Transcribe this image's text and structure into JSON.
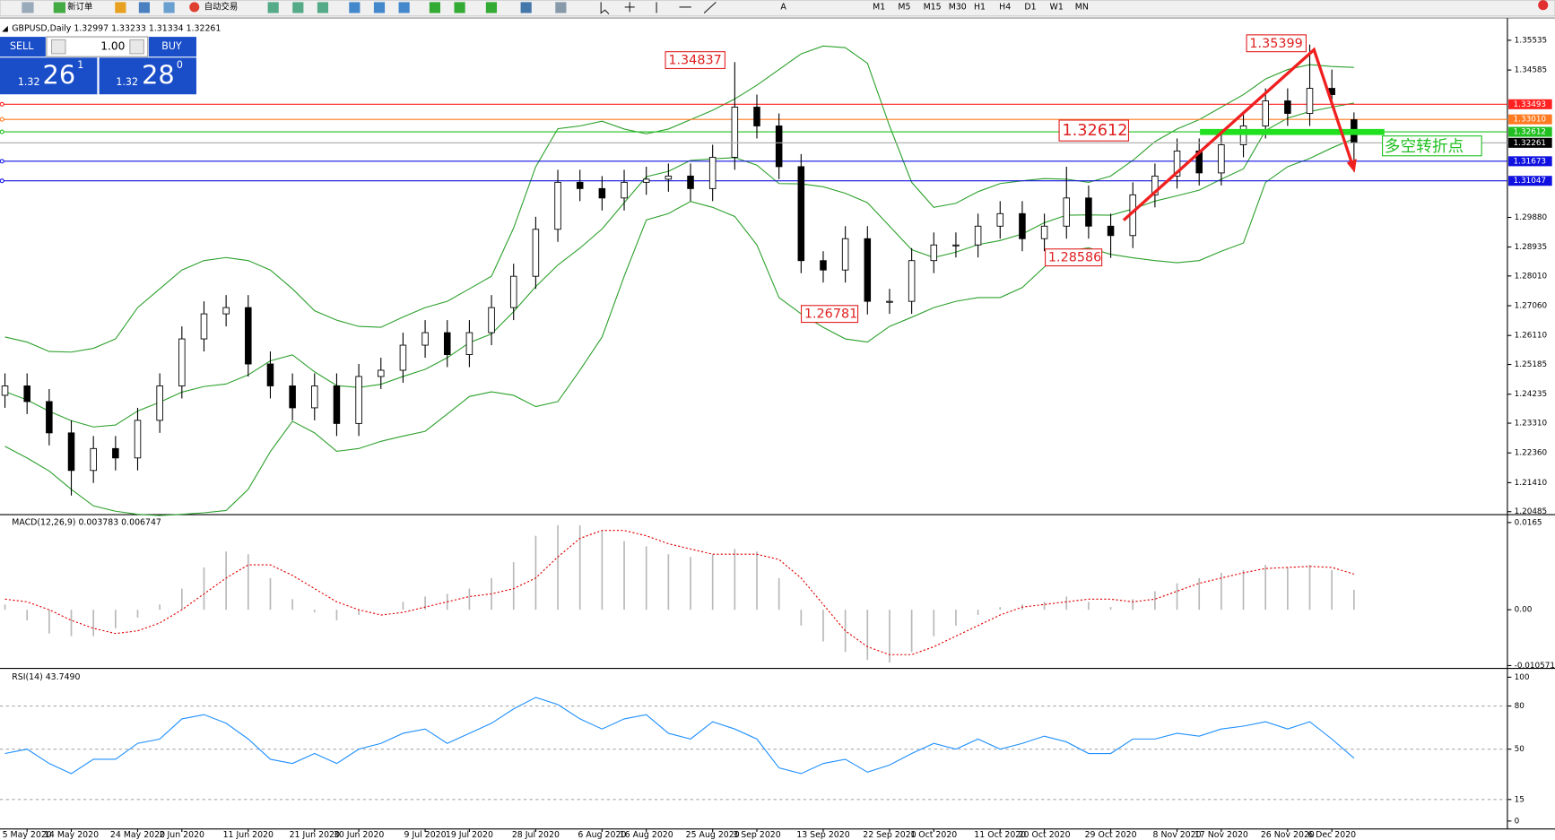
{
  "toolbar": {
    "new_order": "新订单",
    "auto_trading": "自动交易",
    "timeframes": [
      "M1",
      "M5",
      "M15",
      "M30",
      "H1",
      "H4",
      "D1",
      "W1",
      "MN"
    ]
  },
  "trade_panel": {
    "sell": "SELL",
    "lots": "1.00",
    "buy": "BUY",
    "bid_big": "1.32",
    "bid": "26",
    "bid_pip": "1",
    "ask_big": "1.32",
    "ask": "28",
    "ask_pip": "0"
  },
  "annotation": "多空转折点",
  "chart_data": [
    {
      "type": "candlestick",
      "title": "GBPUSD,Daily  1.32997 1.33233 1.31334 1.32261",
      "categories": [
        null,
        "5 May 2020",
        null,
        "14 May 2020",
        null,
        null,
        "24 May 2020",
        null,
        "2 Jun 2020",
        null,
        null,
        "11 Jun 2020",
        null,
        null,
        "21 Jun 2020",
        null,
        "30 Jun 2020",
        null,
        null,
        "9 Jul 2020",
        null,
        "19 Jul 2020",
        null,
        null,
        "28 Jul 2020",
        null,
        null,
        "6 Aug 2020",
        null,
        "16 Aug 2020",
        null,
        null,
        "25 Aug 2020",
        null,
        "3 Sep 2020",
        null,
        null,
        "13 Sep 2020",
        null,
        null,
        "22 Sep 2020",
        null,
        "1 Oct 2020",
        null,
        null,
        "11 Oct 2020",
        null,
        "20 Oct 2020",
        null,
        null,
        "29 Oct 2020",
        null,
        null,
        "8 Nov 2020",
        null,
        "17 Nov 2020",
        null,
        null,
        "26 Nov 2020",
        null,
        "6 Dec 2020",
        null
      ],
      "open": [
        1.242,
        1.245,
        1.24,
        1.23,
        1.218,
        1.225,
        1.222,
        1.234,
        1.245,
        1.26,
        1.268,
        1.27,
        1.252,
        1.245,
        1.238,
        1.245,
        1.233,
        1.248,
        1.25,
        1.258,
        1.262,
        1.255,
        1.262,
        1.27,
        1.28,
        1.295,
        1.31,
        1.308,
        1.305,
        1.31,
        1.311,
        1.312,
        1.308,
        1.318,
        1.334,
        1.328,
        1.315,
        1.285,
        1.282,
        1.292,
        1.272,
        1.272,
        1.285,
        1.29,
        1.29,
        1.296,
        1.3,
        1.292,
        1.296,
        1.305,
        1.296,
        1.293,
        1.306,
        1.312,
        1.32,
        1.313,
        1.322,
        1.328,
        1.336,
        1.332,
        1.34,
        1.32997
      ],
      "high": [
        1.249,
        1.249,
        1.244,
        1.234,
        1.229,
        1.229,
        1.238,
        1.249,
        1.264,
        1.272,
        1.274,
        1.274,
        1.256,
        1.249,
        1.249,
        1.249,
        1.252,
        1.254,
        1.262,
        1.266,
        1.266,
        1.266,
        1.274,
        1.284,
        1.299,
        1.314,
        1.314,
        1.312,
        1.314,
        1.315,
        1.316,
        1.316,
        1.322,
        1.34837,
        1.338,
        1.332,
        1.319,
        1.288,
        1.296,
        1.296,
        1.276,
        1.289,
        1.294,
        1.294,
        1.3,
        1.304,
        1.304,
        1.3,
        1.315,
        1.309,
        1.3,
        1.31,
        1.316,
        1.324,
        1.324,
        1.326,
        1.332,
        1.34,
        1.34,
        1.35399,
        1.346,
        1.33233
      ],
      "low": [
        1.238,
        1.236,
        1.226,
        1.21,
        1.214,
        1.218,
        1.218,
        1.23,
        1.241,
        1.256,
        1.264,
        1.248,
        1.241,
        1.234,
        1.234,
        1.229,
        1.229,
        1.244,
        1.246,
        1.254,
        1.251,
        1.251,
        1.258,
        1.266,
        1.276,
        1.291,
        1.304,
        1.301,
        1.301,
        1.306,
        1.307,
        1.304,
        1.304,
        1.314,
        1.324,
        1.311,
        1.281,
        1.278,
        1.278,
        1.26781,
        1.268,
        1.268,
        1.281,
        1.286,
        1.286,
        1.292,
        1.288,
        1.288,
        1.292,
        1.292,
        1.28586,
        1.289,
        1.302,
        1.308,
        1.309,
        1.309,
        1.318,
        1.324,
        1.328,
        1.328,
        1.334,
        1.31334
      ],
      "close": [
        1.245,
        1.24,
        1.23,
        1.218,
        1.225,
        1.222,
        1.234,
        1.245,
        1.26,
        1.268,
        1.27,
        1.252,
        1.245,
        1.238,
        1.245,
        1.233,
        1.248,
        1.25,
        1.258,
        1.262,
        1.255,
        1.262,
        1.27,
        1.28,
        1.295,
        1.31,
        1.308,
        1.305,
        1.31,
        1.311,
        1.312,
        1.308,
        1.318,
        1.334,
        1.328,
        1.315,
        1.285,
        1.282,
        1.292,
        1.272,
        1.272,
        1.285,
        1.29,
        1.29,
        1.296,
        1.3,
        1.292,
        1.296,
        1.305,
        1.296,
        1.293,
        1.306,
        1.312,
        1.32,
        1.313,
        1.322,
        1.328,
        1.336,
        1.332,
        1.34,
        1.338,
        1.32261
      ],
      "bands": {
        "color": "#2ca02c",
        "upper": [
          1.2606,
          1.259,
          1.256,
          1.2558,
          1.257,
          1.26,
          1.27,
          1.276,
          1.282,
          1.285,
          1.286,
          1.285,
          1.282,
          1.276,
          1.269,
          1.266,
          1.264,
          1.2637,
          1.267,
          1.27,
          1.272,
          1.276,
          1.28,
          1.2954,
          1.315,
          1.3271,
          1.328,
          1.3295,
          1.327,
          1.3255,
          1.327,
          1.33,
          1.333,
          1.3366,
          1.341,
          1.346,
          1.351,
          1.3535,
          1.353,
          1.348,
          1.328,
          1.31,
          1.302,
          1.3033,
          1.307,
          1.3096,
          1.3105,
          1.3112,
          1.311,
          1.31,
          1.312,
          1.317,
          1.323,
          1.327,
          1.33,
          1.334,
          1.338,
          1.343,
          1.346,
          1.3476,
          1.347,
          1.3467
        ],
        "middle": [
          1.2432,
          1.2405,
          1.2369,
          1.2339,
          1.2319,
          1.2325,
          1.237,
          1.2398,
          1.243,
          1.2448,
          1.2456,
          1.2485,
          1.253,
          1.2549,
          1.2495,
          1.2451,
          1.2445,
          1.2455,
          1.248,
          1.2503,
          1.254,
          1.2588,
          1.2616,
          1.2687,
          1.2767,
          1.2836,
          1.289,
          1.2951,
          1.3035,
          1.3118,
          1.3135,
          1.317,
          1.3175,
          1.3179,
          1.3155,
          1.3096,
          1.3095,
          1.3086,
          1.3065,
          1.3035,
          1.296,
          1.2885,
          1.286,
          1.2877,
          1.2901,
          1.2914,
          1.2935,
          1.2971,
          1.2995,
          1.2996,
          1.2995,
          1.3015,
          1.304,
          1.3057,
          1.3075,
          1.311,
          1.3143,
          1.3265,
          1.3305,
          1.3326,
          1.334,
          1.3353
        ],
        "lower": [
          1.2257,
          1.222,
          1.2178,
          1.212,
          1.2067,
          1.205,
          1.204,
          1.2036,
          1.204,
          1.2045,
          1.2052,
          1.212,
          1.224,
          1.2337,
          1.23,
          1.2241,
          1.225,
          1.2273,
          1.229,
          1.2305,
          1.236,
          1.2416,
          1.2431,
          1.242,
          1.2384,
          1.24,
          1.25,
          1.2606,
          1.28,
          1.298,
          1.3,
          1.3039,
          1.302,
          1.2991,
          1.29,
          1.2732,
          1.268,
          1.2637,
          1.26,
          1.259,
          1.264,
          1.2669,
          1.27,
          1.272,
          1.2732,
          1.2732,
          1.2764,
          1.283,
          1.288,
          1.2891,
          1.287,
          1.2859,
          1.285,
          1.2843,
          1.285,
          1.288,
          1.2906,
          1.31,
          1.315,
          1.3176,
          1.321,
          1.3239
        ]
      },
      "levels": [
        {
          "value": 1.33493,
          "color": "#ff2020"
        },
        {
          "value": 1.3301,
          "label": "1.33010",
          "color": "#ff7a20"
        },
        {
          "value": 1.32612,
          "color": "#20c020"
        },
        {
          "value": 1.31673,
          "color": "#1010e0"
        },
        {
          "value": 1.31047,
          "color": "#1010e0"
        }
      ],
      "ylim": [
        1.2042,
        1.3612
      ],
      "yticks": [
        1.35535,
        1.34585,
        {
          "value": 1.2988,
          "label": "1.29880"
        },
        1.28935,
        {
          "value": 1.2801,
          "label": "1.28010"
        },
        {
          "value": 1.2706,
          "label": "1.27060"
        },
        {
          "value": 1.2611,
          "label": "1.26110"
        },
        1.25185,
        1.24235,
        {
          "value": 1.2331,
          "label": "1.23310"
        },
        {
          "value": 1.2236,
          "label": "1.22360"
        },
        {
          "value": 1.2141,
          "label": "1.21410"
        },
        1.20485
      ]
    },
    {
      "type": "macd",
      "title": "MACD(12,26,9) 0.003783 0.006747",
      "values": [
        0.001,
        -0.002,
        -0.0045,
        -0.005,
        -0.005,
        -0.0035,
        -0.0015,
        0.001,
        0.004,
        0.008,
        0.011,
        0.0105,
        0.006,
        0.002,
        -0.0005,
        -0.002,
        -0.001,
        0.0,
        0.0015,
        0.0025,
        0.003,
        0.004,
        0.006,
        0.009,
        0.014,
        0.016,
        0.016,
        0.015,
        0.013,
        0.012,
        0.0105,
        0.01,
        0.0105,
        0.0115,
        0.011,
        0.006,
        -0.003,
        -0.006,
        -0.008,
        -0.0095,
        -0.01,
        -0.008,
        -0.005,
        -0.003,
        -0.001,
        0.0005,
        0.001,
        0.0015,
        0.0025,
        0.0015,
        0.0005,
        0.002,
        0.0035,
        0.005,
        0.006,
        0.007,
        0.0075,
        0.0085,
        0.008,
        0.0085,
        0.0075,
        0.003783
      ],
      "color": "#b8b8b8",
      "signal": [
        0.002,
        0.0015,
        0.0,
        -0.002,
        -0.0035,
        -0.0045,
        -0.004,
        -0.0025,
        0.0,
        0.003,
        0.006,
        0.0085,
        0.0085,
        0.0065,
        0.004,
        0.0015,
        0.0,
        -0.001,
        -0.0005,
        0.0005,
        0.0015,
        0.0025,
        0.003,
        0.004,
        0.006,
        0.01,
        0.0135,
        0.015,
        0.015,
        0.014,
        0.0125,
        0.0115,
        0.0105,
        0.0105,
        0.0105,
        0.0095,
        0.006,
        0.001,
        -0.004,
        -0.007,
        -0.0085,
        -0.0085,
        -0.007,
        -0.005,
        -0.003,
        -0.001,
        0.0005,
        0.001,
        0.0015,
        0.002,
        0.002,
        0.0015,
        0.002,
        0.0035,
        0.005,
        0.006,
        0.007,
        0.0078,
        0.008,
        0.0082,
        0.008,
        0.006747
      ],
      "signal_color": "#e00000",
      "ylim": [
        -0.0109,
        0.0178
      ],
      "yticks": [
        0.0165,
        {
          "value": 0,
          "label": "0.00"
        },
        -0.010571
      ]
    },
    {
      "type": "line",
      "title": "RSI(14) 43.7490",
      "values": [
        47,
        50,
        40,
        33,
        43,
        43,
        54,
        57,
        71,
        74,
        68,
        57,
        43,
        40,
        47,
        40,
        50,
        54,
        61,
        64,
        54,
        61,
        68,
        78,
        86,
        81,
        71,
        64,
        71,
        74,
        61,
        57,
        69,
        64,
        57,
        37,
        33,
        40,
        43,
        34,
        39,
        47,
        54,
        50,
        57,
        50,
        54,
        59,
        55,
        47,
        47,
        57,
        57,
        61,
        59,
        64,
        66,
        69,
        64,
        69,
        57,
        43.749
      ],
      "color": "#1e8fff",
      "levels": [
        80,
        50,
        15
      ],
      "ylim": [
        -4.8,
        104.8
      ],
      "yticks": [
        100,
        80,
        50,
        15,
        0
      ]
    }
  ]
}
